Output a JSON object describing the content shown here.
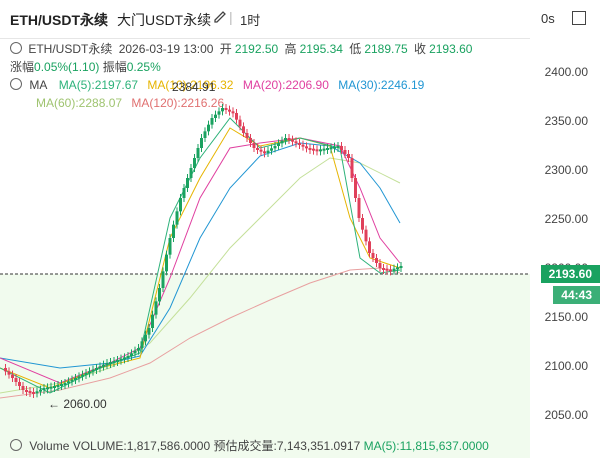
{
  "header": {
    "symbol": "ETH/USDT永续",
    "exchange": "大门USDT永续",
    "timeframe": "1时",
    "sync": "0s"
  },
  "ohlc": {
    "symbol": "ETH/USDT永续",
    "datetime": "2026-03-19 13:00",
    "open_label": "开",
    "open": "2192.50",
    "high_label": "高",
    "high": "2195.34",
    "low_label": "低",
    "low": "2189.75",
    "close_label": "收",
    "close": "2193.60"
  },
  "change": {
    "chg_label": "涨幅",
    "chg": "0.05%(1.10)",
    "amp_label": "振幅",
    "amp": "0.25%"
  },
  "ma": {
    "label": "MA",
    "ma5": "MA(5):2197.67",
    "ma10": "MA(10):2196.32",
    "ma20": "MA(20):2206.90",
    "ma30": "MA(30):2246.19",
    "ma60": "MA(60):2288.07",
    "ma120": "MA(120):2216.26"
  },
  "annotations": {
    "high_marker": "2384.91",
    "low_marker": "← 2060.00"
  },
  "price_axis": [
    "2400.00",
    "2350.00",
    "2300.00",
    "2250.00",
    "2200.00",
    "2150.00",
    "2100.00",
    "2050.00"
  ],
  "price_tag": "2193.60",
  "countdown": "44:43",
  "volume": {
    "label": "Volume",
    "volume": "VOLUME:1,817,586.0000",
    "est": "预估成交量:7,143,351.0917",
    "ma5": "MA(5):11,815,637.0000"
  },
  "colors": {
    "up": "#1aa260",
    "down": "#e0405a",
    "ma5": "#e5a100",
    "ma10": "#e6b400",
    "ma20": "#e040a0",
    "ma30": "#2196d3",
    "ma60": "#b0d28a",
    "ma120": "#e07070"
  }
}
